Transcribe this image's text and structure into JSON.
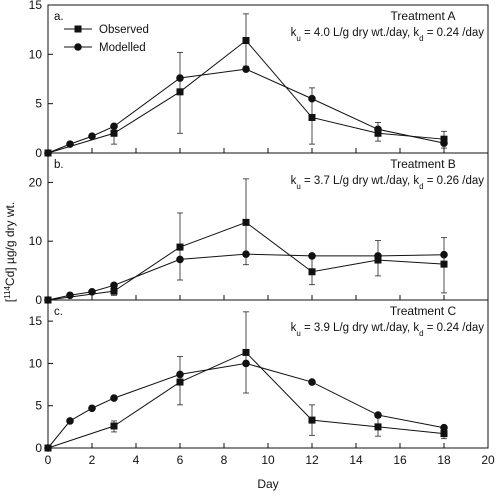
{
  "chart_data": {
    "type": "line",
    "x_label": "Day",
    "y_label": "[114Cd] µg/g dry wt.",
    "y_label_parts": {
      "pre": "[",
      "sup": "114",
      "post": "Cd] µg/g dry wt."
    },
    "legend": {
      "observed": "Observed",
      "modelled": "Modelled",
      "placement": "top-left (panel a)"
    },
    "xlim": [
      0,
      20
    ],
    "x_ticks": [
      0,
      2,
      4,
      6,
      8,
      10,
      12,
      14,
      16,
      18,
      20
    ],
    "panels": [
      {
        "letter": "a.",
        "title": "Treatment A",
        "params": {
          "ku_value": "4.0 L/g dry wt./day",
          "kd_value": "0.24 /day"
        },
        "ylim": [
          0,
          15
        ],
        "y_ticks": [
          0,
          5,
          10,
          15
        ],
        "observed": {
          "x": [
            0,
            3,
            6,
            9,
            12,
            15,
            18
          ],
          "y": [
            0,
            2.0,
            6.2,
            11.4,
            3.6,
            2.0,
            1.4
          ],
          "err_low": [
            0,
            0.9,
            2.0,
            8.8,
            0.9,
            1.2,
            0.5
          ],
          "err_high": [
            0,
            2.6,
            10.2,
            14.1,
            6.6,
            3.1,
            2.2
          ]
        },
        "modelled": {
          "x": [
            0,
            1,
            2,
            3,
            6,
            9,
            12,
            15,
            18
          ],
          "y": [
            0,
            0.9,
            1.7,
            2.7,
            7.6,
            8.5,
            5.5,
            2.4,
            1.0
          ]
        }
      },
      {
        "letter": "b.",
        "title": "Treatment B",
        "params": {
          "ku_value": "3.7 L/g dry wt./day",
          "kd_value": "0.26 /day"
        },
        "ylim": [
          0,
          25
        ],
        "y_ticks": [
          0,
          10,
          20
        ],
        "observed": {
          "x": [
            0,
            3,
            6,
            9,
            12,
            15,
            18
          ],
          "y": [
            0,
            1.5,
            9.0,
            13.2,
            4.8,
            6.8,
            6.1
          ],
          "err_low": [
            0,
            0.8,
            3.4,
            6.0,
            2.6,
            4.1,
            1.2
          ],
          "err_high": [
            0,
            2.2,
            14.8,
            20.6,
            7.5,
            10.1,
            10.6
          ]
        },
        "modelled": {
          "x": [
            0,
            1,
            2,
            3,
            6,
            9,
            12,
            15,
            18
          ],
          "y": [
            0,
            0.8,
            1.4,
            2.5,
            6.9,
            7.8,
            7.5,
            7.5,
            7.7
          ]
        }
      },
      {
        "letter": "c.",
        "title": "Treatment C",
        "params": {
          "ku_value": "3.9 L/g dry wt./day",
          "kd_value": "0.24 /day"
        },
        "ylim": [
          0,
          17.5
        ],
        "y_ticks": [
          0,
          5,
          10,
          15
        ],
        "observed": {
          "x": [
            0,
            3,
            6,
            9,
            12,
            15,
            18
          ],
          "y": [
            0,
            2.6,
            7.8,
            11.3,
            3.3,
            2.5,
            1.7
          ],
          "err_low": [
            0,
            1.9,
            5.1,
            6.5,
            1.5,
            1.4,
            1.1
          ],
          "err_high": [
            0,
            3.2,
            10.8,
            16.1,
            5.1,
            3.6,
            2.5
          ]
        },
        "modelled": {
          "x": [
            0,
            1,
            2,
            3,
            6,
            9,
            12,
            15,
            18
          ],
          "y": [
            0,
            3.2,
            4.7,
            5.9,
            8.7,
            10.0,
            7.8,
            3.9,
            2.4
          ]
        }
      }
    ]
  }
}
